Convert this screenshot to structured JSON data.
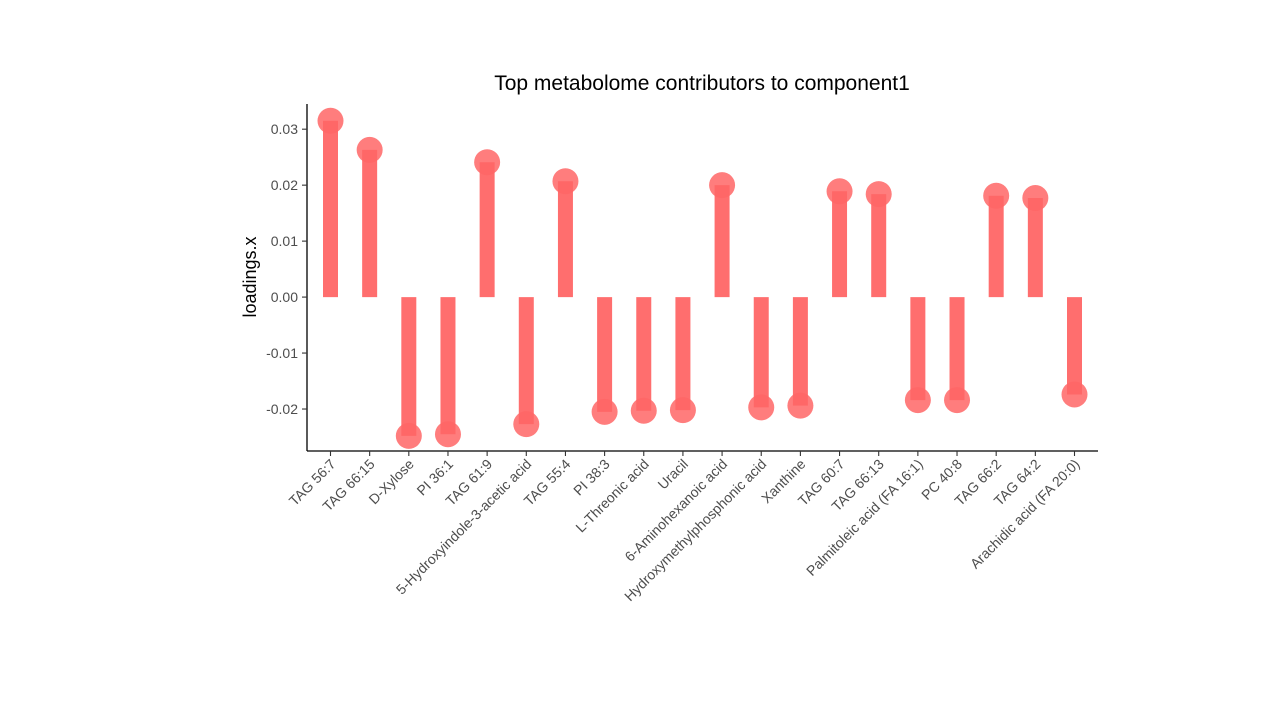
{
  "chart_data": {
    "type": "lollipop",
    "title": "Top metabolome contributors to component1",
    "ylabel": "loadings.x",
    "xlabel": "",
    "ylim": [
      -0.0275,
      0.0345
    ],
    "yticks": [
      0.03,
      0.02,
      0.01,
      0.0,
      -0.01,
      -0.02
    ],
    "ytick_labels": [
      "0.03",
      "0.02",
      "0.01",
      "0.00",
      "-0.01",
      "-0.02"
    ],
    "grid": false,
    "legend": "none",
    "color": "#ff6666",
    "categories": [
      "TAG 56:7",
      "TAG 66:15",
      "D-Xylose",
      "PI 36:1",
      "TAG 61:9",
      "5-Hydroxyindole-3-acetic acid",
      "TAG 55:4",
      "PI 38:3",
      "L-Threonic acid",
      "Uracil",
      "6-Aminohexanoic acid",
      "Hydroxymethylphosphonic acid",
      "Xanthine",
      "TAG 60:7",
      "TAG 66:13",
      "Palmitoleic acid (FA 16:1)",
      "PC 40:8",
      "TAG 66:2",
      "TAG 64:2",
      "Arachidic acid (FA 20:0)"
    ],
    "values": [
      0.0315,
      0.0263,
      -0.0248,
      -0.0245,
      0.0241,
      -0.0227,
      0.0207,
      -0.0205,
      -0.0203,
      -0.0202,
      0.02,
      -0.0197,
      -0.0194,
      0.0189,
      0.0184,
      -0.0184,
      -0.0184,
      0.0181,
      0.0177,
      -0.0174
    ]
  }
}
